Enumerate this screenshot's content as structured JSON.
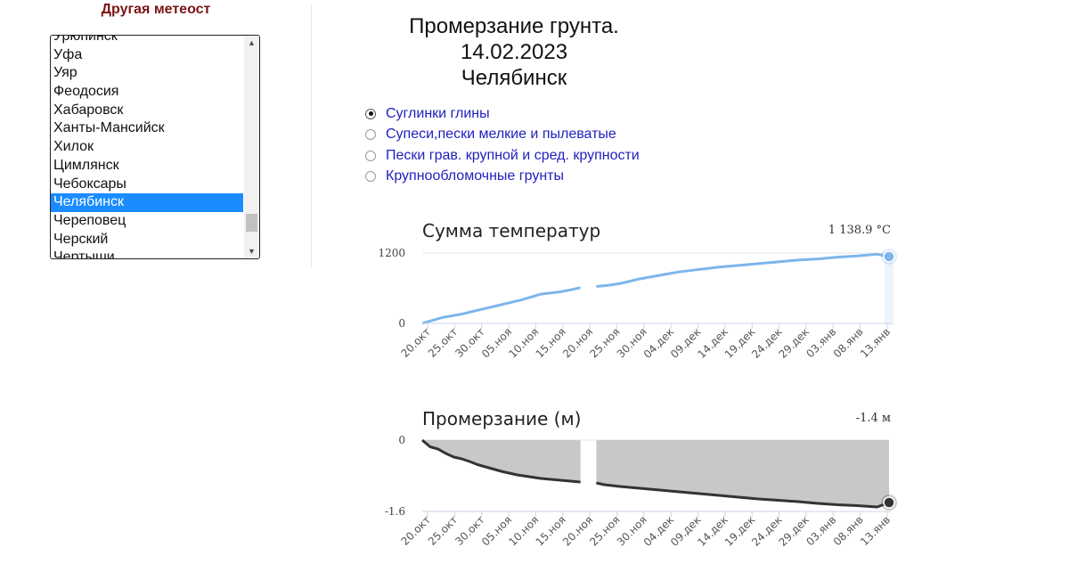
{
  "sidebar": {
    "heading": "Другая метеост",
    "stations": [
      "Урюпинск",
      "Уфа",
      "Уяр",
      "Феодосия",
      "Хабаровск",
      "Ханты-Мансийск",
      "Хилок",
      "Цимлянск",
      "Чебоксары",
      "Челябинск",
      "Череповец",
      "Черский",
      "Чертыши"
    ],
    "selected_station": "Челябинск"
  },
  "header": {
    "title": "Промерзание грунта.",
    "date": "14.02.2023",
    "city": "Челябинск"
  },
  "soil_types": [
    {
      "label": "Суглинки глины",
      "checked": true
    },
    {
      "label": "Супеси,пески мелкие и пылеватые",
      "checked": false
    },
    {
      "label": "Пески грав. крупной и сред. крупности",
      "checked": false
    },
    {
      "label": "Крупнообломочные грунты",
      "checked": false
    }
  ],
  "chart_data": [
    {
      "type": "line",
      "title": "Сумма температур",
      "value_label": "1 138.9 °C",
      "color": "#7cb5ec",
      "x_ticks": [
        "20.окт",
        "25.окт",
        "30.окт",
        "05.ноя",
        "10.ноя",
        "15.ноя",
        "20.ноя",
        "25.ноя",
        "30.ноя",
        "04.дек",
        "09.дек",
        "14.дек",
        "19.дек",
        "24.дек",
        "29.дек",
        "03.янв",
        "08.янв",
        "13.янв"
      ],
      "y_ticks": [
        "1200",
        "0"
      ],
      "ylim": [
        0,
        1200
      ],
      "x": [
        0,
        2,
        5,
        10,
        15,
        20,
        25,
        30,
        35,
        38,
        40,
        42,
        44,
        47,
        50,
        55,
        60,
        65,
        70,
        75,
        80,
        85,
        90,
        95,
        100,
        105,
        110,
        115,
        118
      ],
      "values": [
        0,
        40,
        100,
        160,
        240,
        320,
        400,
        500,
        540,
        580,
        610,
        null,
        630,
        650,
        680,
        760,
        820,
        880,
        920,
        960,
        990,
        1020,
        1050,
        1080,
        1100,
        1130,
        1150,
        1180,
        1139
      ],
      "last_point": {
        "x": 118,
        "y": 1139
      }
    },
    {
      "type": "area",
      "title": "Промерзание (м)",
      "value_label": "-1.4 м",
      "color": "#333333",
      "fill_color": "#c8c8c8",
      "x_ticks": [
        "20.окт",
        "25.окт",
        "30.окт",
        "05.ноя",
        "10.ноя",
        "15.ноя",
        "20.ноя",
        "25.ноя",
        "30.ноя",
        "04.дек",
        "09.дек",
        "14.дек",
        "19.дек",
        "24.дек",
        "29.дек",
        "03.янв",
        "08.янв",
        "13.янв"
      ],
      "y_ticks": [
        "0",
        "-1.6"
      ],
      "ylim": [
        -1.6,
        0
      ],
      "x": [
        0,
        2,
        4,
        6,
        8,
        10,
        12,
        14,
        16,
        18,
        20,
        22,
        24,
        27,
        30,
        35,
        40,
        42,
        44,
        46,
        48,
        50,
        55,
        60,
        65,
        70,
        75,
        80,
        85,
        90,
        95,
        100,
        105,
        110,
        115,
        118
      ],
      "values": [
        0,
        -0.15,
        -0.2,
        -0.3,
        -0.38,
        -0.42,
        -0.48,
        -0.55,
        -0.6,
        -0.65,
        -0.7,
        -0.74,
        -0.78,
        -0.82,
        -0.86,
        -0.9,
        -0.94,
        null,
        -0.96,
        -1.0,
        -1.02,
        -1.04,
        -1.08,
        -1.12,
        -1.16,
        -1.2,
        -1.24,
        -1.28,
        -1.32,
        -1.35,
        -1.38,
        -1.42,
        -1.45,
        -1.47,
        -1.5,
        -1.4
      ],
      "last_point": {
        "x": 118,
        "y": -1.4
      }
    }
  ]
}
